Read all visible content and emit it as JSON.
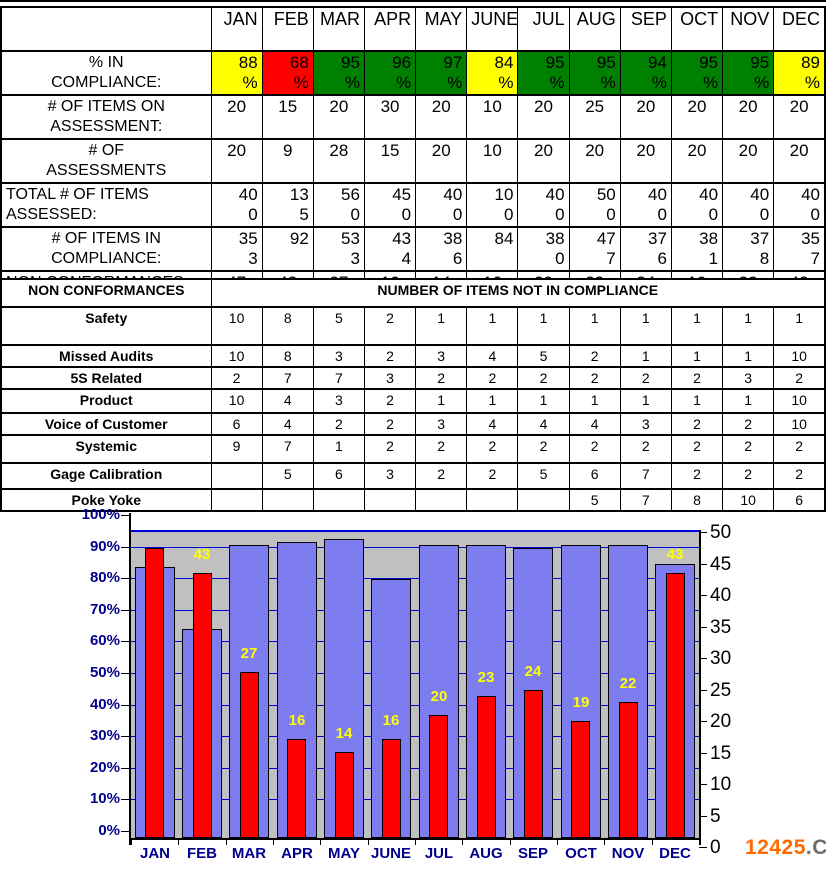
{
  "months": [
    "JAN",
    "FEB",
    "MAR",
    "APR",
    "MAY",
    "JUNE",
    "JUL",
    "AUG",
    "SEP",
    "OCT",
    "NOV",
    "DEC"
  ],
  "table1": {
    "rows": [
      {
        "label": "% IN\nCOMPLIANCE:",
        "label_align": "center",
        "value_align": "right",
        "format": "percent",
        "values": [
          88,
          68,
          95,
          96,
          97,
          84,
          95,
          95,
          94,
          95,
          95,
          89
        ],
        "cell_colors": [
          "#FFFF00",
          "#FF0000",
          "#008000",
          "#008000",
          "#008000",
          "#FFFF00",
          "#008000",
          "#008000",
          "#008000",
          "#008000",
          "#008000",
          "#FFFF00"
        ]
      },
      {
        "label": "# OF ITEMS ON\nASSESSMENT:",
        "label_align": "center",
        "value_align": "center",
        "format": "plain",
        "values": [
          20,
          15,
          20,
          30,
          20,
          10,
          20,
          25,
          20,
          20,
          20,
          20
        ]
      },
      {
        "label": "# OF\nASSESSMENTS",
        "label_align": "center",
        "value_align": "center",
        "format": "plain",
        "values": [
          20,
          9,
          28,
          15,
          20,
          10,
          20,
          20,
          20,
          20,
          20,
          20
        ]
      },
      {
        "label": "TOTAL # OF ITEMS\nASSESSED:",
        "label_align": "left",
        "value_align": "right",
        "format": "split3",
        "values": [
          400,
          135,
          560,
          450,
          400,
          100,
          400,
          500,
          400,
          400,
          400,
          400
        ]
      },
      {
        "label": "# OF ITEMS IN\nCOMPLIANCE:",
        "label_align": "center",
        "value_align": "right",
        "format": "split3",
        "values": [
          353,
          92,
          533,
          434,
          386,
          84,
          380,
          477,
          376,
          381,
          378,
          357
        ]
      },
      {
        "label": "NON CONFORMANCES",
        "label_align": "left",
        "value_align": "center",
        "format": "plain",
        "values": [
          47,
          43,
          27,
          16,
          14,
          16,
          20,
          23,
          24,
          19,
          22,
          43
        ]
      }
    ]
  },
  "table2": {
    "header_label": "NON CONFORMANCES",
    "header_title": "NUMBER OF ITEMS NOT IN COMPLIANCE",
    "rows": [
      {
        "label": "Safety",
        "values": [
          10,
          8,
          5,
          2,
          1,
          1,
          1,
          1,
          1,
          1,
          1,
          1
        ]
      },
      {
        "label": "Missed Audits",
        "values": [
          10,
          8,
          3,
          2,
          3,
          4,
          5,
          2,
          1,
          1,
          1,
          10
        ]
      },
      {
        "label": "5S Related",
        "values": [
          2,
          7,
          7,
          3,
          2,
          2,
          2,
          2,
          2,
          2,
          3,
          2
        ]
      },
      {
        "label": "Product",
        "values": [
          10,
          4,
          3,
          2,
          1,
          1,
          1,
          1,
          1,
          1,
          1,
          10
        ]
      },
      {
        "label": "Voice of Customer",
        "values": [
          6,
          4,
          2,
          2,
          3,
          4,
          4,
          4,
          3,
          2,
          2,
          10
        ]
      },
      {
        "label": "Systemic",
        "values": [
          9,
          7,
          1,
          2,
          2,
          2,
          2,
          2,
          2,
          2,
          2,
          2
        ]
      },
      {
        "label": "Gage Calibration",
        "values": [
          "",
          5,
          6,
          3,
          2,
          2,
          5,
          6,
          7,
          2,
          2,
          2
        ]
      },
      {
        "label": "Poke Yoke",
        "values": [
          "",
          "",
          "",
          "",
          "",
          "",
          "",
          5,
          7,
          8,
          10,
          6
        ]
      }
    ]
  },
  "chart_data": {
    "type": "bar",
    "categories": [
      "JAN",
      "FEB",
      "MAR",
      "APR",
      "MAY",
      "JUNE",
      "JUL",
      "AUG",
      "SEP",
      "OCT",
      "NOV",
      "DEC"
    ],
    "series": [
      {
        "name": "% in compliance",
        "axis": "left",
        "color": "#7D7DF0",
        "values": [
          88,
          68,
          95,
          96,
          97,
          84,
          95,
          95,
          94,
          95,
          95,
          89
        ]
      },
      {
        "name": "non conformances",
        "axis": "right",
        "color": "#FF0000",
        "values": [
          47,
          43,
          27,
          16,
          14,
          16,
          20,
          23,
          24,
          19,
          22,
          43
        ],
        "data_labels": [
          null,
          43,
          27,
          16,
          14,
          16,
          20,
          23,
          24,
          19,
          22,
          43
        ]
      }
    ],
    "left_axis": {
      "min": 0,
      "max": 100,
      "ticks": [
        "100%",
        "90%",
        "80%",
        "70%",
        "60%",
        "50%",
        "40%",
        "30%",
        "20%",
        "10%",
        "0%"
      ]
    },
    "right_axis": {
      "min": 0,
      "max": 50,
      "ticks": [
        "50",
        "45",
        "40",
        "35",
        "30",
        "25",
        "20",
        "15",
        "10",
        "5",
        "0"
      ]
    },
    "label_color": "#FFFF00",
    "plot_bg": "#C0C0C0",
    "grid_color": "#0000D8",
    "axis_text_color": "#00008B",
    "grid": true,
    "legend": "none"
  },
  "watermark": {
    "orange": "12425",
    "gray": ".CN"
  }
}
